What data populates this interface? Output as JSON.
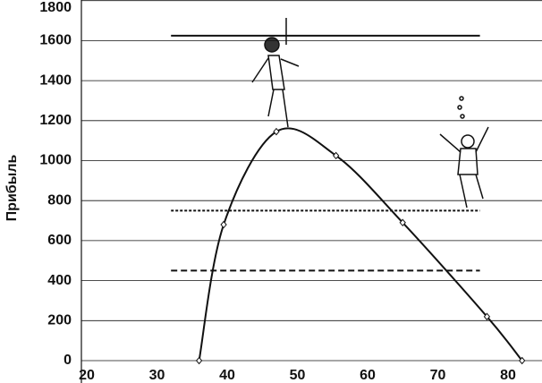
{
  "chart_data": {
    "type": "line",
    "y_label": "Прибыль",
    "x": [
      36,
      39.5,
      47,
      55.5,
      65,
      77,
      82
    ],
    "values": [
      0,
      680,
      1145,
      1025,
      690,
      220,
      0
    ],
    "color": "#111",
    "xlim": [
      20,
      85
    ],
    "ylim": [
      0,
      1800
    ],
    "xticks": [
      20,
      30,
      40,
      50,
      60,
      70,
      80
    ],
    "yticks": [
      0,
      200,
      400,
      600,
      800,
      1000,
      1200,
      1400,
      1600,
      1800
    ],
    "grid": true,
    "hlines": [
      {
        "y": 1625,
        "x": [
          32,
          76
        ],
        "style": "solid"
      },
      {
        "y": 750,
        "x": [
          32,
          76
        ],
        "style": "dotted"
      },
      {
        "y": 450,
        "x": [
          32,
          76
        ],
        "style": "dashed"
      }
    ]
  }
}
